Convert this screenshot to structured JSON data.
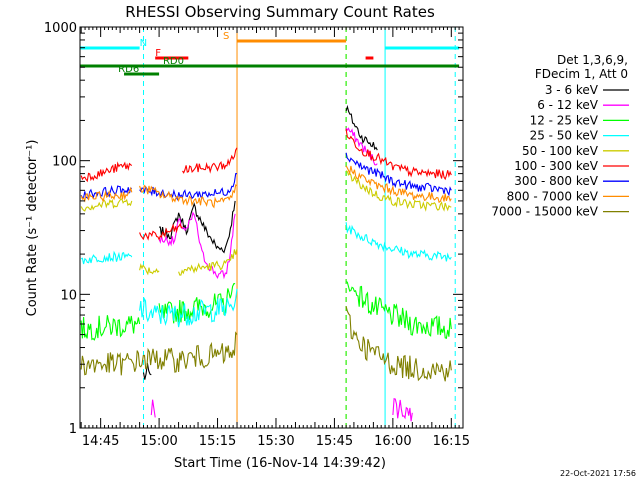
{
  "chart_data": {
    "type": "line",
    "title": "RHESSI Observing Summary Count Rates",
    "xlabel": "Start Time (16-Nov-14 14:39:42)",
    "ylabel": "Count Rate (s⁻¹ detector⁻¹)",
    "yscale": "log",
    "ylim": [
      1,
      1000
    ],
    "xlim": [
      "14:39:42",
      "16:18:00"
    ],
    "grid": false,
    "legend_position": "right",
    "x_ticks": [
      "14:45",
      "15:00",
      "15:15",
      "15:30",
      "15:45",
      "16:00",
      "16:15"
    ],
    "y_ticks": [
      "1",
      "10",
      "100",
      "1000"
    ],
    "legend_header": [
      "Det 1,3,6,9,",
      "FDecim 1, Att 0"
    ],
    "series": [
      {
        "name": "3 - 6 keV",
        "color": "#000000",
        "segments": [
          [
            [
              "14:56:00",
              2.5
            ],
            [
              "14:58:00",
              2.5
            ]
          ],
          [
            [
              "15:00:00",
              30
            ],
            [
              "15:03:00",
              28
            ],
            [
              "15:05:00",
              40
            ],
            [
              "15:07:00",
              30
            ],
            [
              "15:09:00",
              45
            ],
            [
              "15:12:00",
              30
            ],
            [
              "15:15:00",
              22
            ],
            [
              "15:17:00",
              22
            ],
            [
              "15:18:00",
              28
            ],
            [
              "15:19:30",
              50
            ]
          ],
          [
            [
              "15:48:00",
              250
            ],
            [
              "15:50:00",
              190
            ],
            [
              "15:52:00",
              150
            ],
            [
              "15:55:00",
              130
            ],
            [
              "15:56:00",
              120
            ]
          ]
        ]
      },
      {
        "name": "6 - 12 keV",
        "color": "#ff00ff",
        "segments": [
          [
            [
              "14:58:00",
              1.5
            ],
            [
              "14:59:00",
              1.2
            ]
          ],
          [
            [
              "15:00:00",
              26
            ],
            [
              "15:04:00",
              25
            ],
            [
              "15:05:00",
              35
            ],
            [
              "15:07:00",
              30
            ],
            [
              "15:09:00",
              40
            ],
            [
              "15:11:00",
              20
            ],
            [
              "15:13:00",
              16
            ],
            [
              "15:15:00",
              14
            ],
            [
              "15:17:00",
              14
            ],
            [
              "15:18:00",
              18
            ],
            [
              "15:19:30",
              40
            ]
          ],
          [
            [
              "15:48:00",
              180
            ],
            [
              "15:51:00",
              140
            ],
            [
              "15:54:00",
              110
            ],
            [
              "15:56:00",
              95
            ]
          ],
          [
            [
              "16:00:00",
              1.5
            ],
            [
              "16:05:00",
              1.3
            ]
          ]
        ]
      },
      {
        "name": "12 - 25 keV",
        "color": "#00ff00",
        "segments": [
          [
            [
              "14:40:00",
              5.5
            ],
            [
              "14:55:00",
              6
            ]
          ],
          [
            [
              "15:00:00",
              7
            ],
            [
              "15:10:00",
              8
            ],
            [
              "15:17:00",
              8.5
            ],
            [
              "15:19:30",
              12
            ]
          ],
          [
            [
              "15:48:00",
              12
            ],
            [
              "15:55:00",
              8
            ],
            [
              "16:05:00",
              6
            ],
            [
              "16:15:00",
              5.5
            ]
          ]
        ]
      },
      {
        "name": "25 - 50 keV",
        "color": "#00ffff",
        "segments": [
          [
            [
              "14:40:00",
              18
            ],
            [
              "14:46:00",
              19
            ],
            [
              "14:50:00",
              19
            ],
            [
              "14:53:00",
              19
            ]
          ],
          [
            [
              "14:55:00",
              8
            ],
            [
              "14:58:00",
              7
            ],
            [
              "15:05:00",
              7
            ],
            [
              "15:12:00",
              7.5
            ],
            [
              "15:19:00",
              8
            ],
            [
              "15:20:00",
              11
            ]
          ],
          [
            [
              "15:48:00",
              32
            ],
            [
              "15:52:00",
              27
            ],
            [
              "15:56:00",
              24
            ],
            [
              "16:00:00",
              22
            ],
            [
              "16:05:00",
              20
            ],
            [
              "16:15:00",
              19
            ]
          ]
        ]
      },
      {
        "name": "50 - 100 keV",
        "color": "#cccc00",
        "segments": [
          [
            [
              "14:40:00",
              45
            ],
            [
              "14:48:00",
              48
            ],
            [
              "14:52:00",
              50
            ],
            [
              "14:53:00",
              50
            ]
          ],
          [
            [
              "14:55:00",
              16
            ],
            [
              "14:58:00",
              15
            ],
            [
              "15:00:00",
              15
            ]
          ],
          [
            [
              "15:05:00",
              15
            ],
            [
              "15:12:00",
              16
            ],
            [
              "15:18:00",
              17
            ],
            [
              "15:20:00",
              22
            ]
          ],
          [
            [
              "15:48:00",
              80
            ],
            [
              "15:52:00",
              65
            ],
            [
              "15:56:00",
              55
            ],
            [
              "16:00:00",
              50
            ],
            [
              "16:05:00",
              47
            ],
            [
              "16:15:00",
              45
            ]
          ]
        ]
      },
      {
        "name": "100 - 300 keV",
        "color": "#ff0000",
        "segments": [
          [
            [
              "14:40:00",
              75
            ],
            [
              "14:45:00",
              80
            ],
            [
              "14:50:00",
              90
            ],
            [
              "14:53:00",
              92
            ]
          ],
          [
            [
              "14:55:00",
              28
            ],
            [
              "15:00:00",
              27
            ],
            [
              "15:03:00",
              30
            ],
            [
              "15:06:00",
              32
            ]
          ],
          [
            [
              "15:06:00",
              85
            ],
            [
              "15:10:00",
              88
            ],
            [
              "15:15:00",
              90
            ],
            [
              "15:18:00",
              95
            ],
            [
              "15:20:00",
              125
            ]
          ],
          [
            [
              "15:48:00",
              160
            ],
            [
              "15:52:00",
              120
            ],
            [
              "15:56:00",
              105
            ],
            [
              "16:00:00",
              90
            ],
            [
              "16:05:00",
              82
            ],
            [
              "16:15:00",
              78
            ]
          ]
        ]
      },
      {
        "name": "300 - 800 keV",
        "color": "#0000ff",
        "segments": [
          [
            [
              "14:40:00",
              55
            ],
            [
              "14:45:00",
              58
            ],
            [
              "14:50:00",
              60
            ],
            [
              "14:53:00",
              62
            ]
          ],
          [
            [
              "14:55:00",
              60
            ],
            [
              "15:00:00",
              58
            ],
            [
              "15:06:00",
              55
            ],
            [
              "15:10:00",
              56
            ],
            [
              "15:15:00",
              57
            ],
            [
              "15:18:00",
              60
            ],
            [
              "15:20:00",
              80
            ]
          ],
          [
            [
              "15:48:00",
              110
            ],
            [
              "15:52:00",
              90
            ],
            [
              "15:56:00",
              80
            ],
            [
              "16:00:00",
              70
            ],
            [
              "16:05:00",
              64
            ],
            [
              "16:15:00",
              60
            ]
          ]
        ]
      },
      {
        "name": "800 - 7000 keV",
        "color": "#ff8c00",
        "segments": [
          [
            [
              "14:40:00",
              52
            ],
            [
              "14:45:00",
              54
            ],
            [
              "14:50:00",
              55
            ],
            [
              "14:53:00",
              58
            ]
          ],
          [
            [
              "14:55:00",
              62
            ],
            [
              "14:58:00",
              60
            ],
            [
              "15:00:00",
              56
            ],
            [
              "15:05:00",
              52
            ],
            [
              "15:10:00",
              50
            ],
            [
              "15:15:00",
              48
            ],
            [
              "15:18:00",
              50
            ],
            [
              "15:20:00",
              65
            ]
          ],
          [
            [
              "15:48:00",
              90
            ],
            [
              "15:52:00",
              75
            ],
            [
              "15:56:00",
              65
            ],
            [
              "16:00:00",
              60
            ],
            [
              "16:05:00",
              55
            ],
            [
              "16:15:00",
              52
            ]
          ]
        ]
      },
      {
        "name": "7000 - 15000 keV",
        "color": "#808000",
        "segments": [
          [
            [
              "14:40:00",
              3
            ],
            [
              "14:45:00",
              3
            ],
            [
              "14:50:00",
              3
            ],
            [
              "14:55:00",
              3.2
            ],
            [
              "15:00:00",
              3.3
            ],
            [
              "15:05:00",
              3.2
            ],
            [
              "15:10:00",
              3.4
            ],
            [
              "15:15:00",
              3.5
            ],
            [
              "15:19:00",
              3.6
            ],
            [
              "15:20:00",
              5
            ]
          ],
          [
            [
              "15:48:00",
              7
            ],
            [
              "15:50:00",
              5
            ],
            [
              "15:53:00",
              4
            ],
            [
              "15:56:00",
              3.5
            ],
            [
              "16:00:00",
              3
            ],
            [
              "16:05:00",
              2.8
            ],
            [
              "16:15:00",
              2.7
            ]
          ]
        ]
      }
    ],
    "annotations": [
      {
        "label": "N",
        "color": "#00ffff",
        "segments": [
          [
            "14:39:42",
            "14:55:00"
          ],
          [
            "15:58:00",
            "16:17:00"
          ]
        ]
      },
      {
        "label": "S",
        "color": "#ff8c00",
        "segments": [
          [
            "15:20:00",
            "15:48:00"
          ]
        ]
      },
      {
        "label": "F",
        "color": "#ff0000",
        "segments": [
          [
            "14:59:00",
            "15:07:30"
          ],
          [
            "15:53:00",
            "15:55:00"
          ]
        ]
      },
      {
        "label": "RD0",
        "color": "#008000",
        "segments": [
          [
            "14:39:42",
            "16:17:00"
          ]
        ]
      },
      {
        "label": "RD6",
        "color": "#008000",
        "segments": [
          [
            "14:51:00",
            "15:00:00"
          ]
        ]
      }
    ],
    "vertical_lines": [
      {
        "x": "14:39:42",
        "color": "#00ffff",
        "style": "solid"
      },
      {
        "x": "14:56:00",
        "color": "#00ffff",
        "style": "dashed"
      },
      {
        "x": "15:20:00",
        "color": "#ff8c00",
        "style": "solid"
      },
      {
        "x": "15:48:00",
        "color": "#ff8c00",
        "style": "dashed"
      },
      {
        "x": "15:48:00",
        "color": "#00ff00",
        "style": "dashed"
      },
      {
        "x": "15:58:00",
        "color": "#00ffff",
        "style": "solid"
      },
      {
        "x": "16:16:00",
        "color": "#00ffff",
        "style": "dashed"
      }
    ]
  },
  "timestamp": "22-Oct-2021 17:56"
}
